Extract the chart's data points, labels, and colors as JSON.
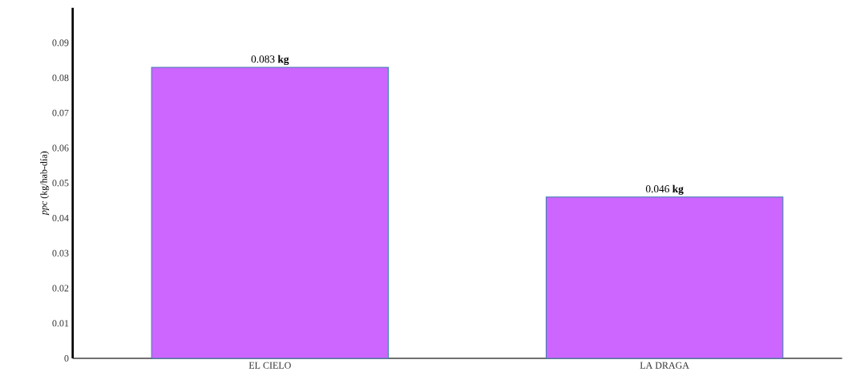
{
  "chart_data": {
    "type": "bar",
    "ylabel": "*ppc* (kg/hab-día)",
    "categories": [
      "EL CIELO",
      "LA DRAGA"
    ],
    "values": [
      0.083,
      0.046
    ],
    "value_labels": [
      "0.083  **kg**",
      "0.046  **kg**"
    ],
    "color": "#cc66ff",
    "ylim": [
      0,
      0.1
    ],
    "yticks": [
      0,
      0.01,
      0.02,
      0.03,
      0.04,
      0.05,
      0.06,
      0.07,
      0.08,
      0.09
    ],
    "grid": false
  }
}
